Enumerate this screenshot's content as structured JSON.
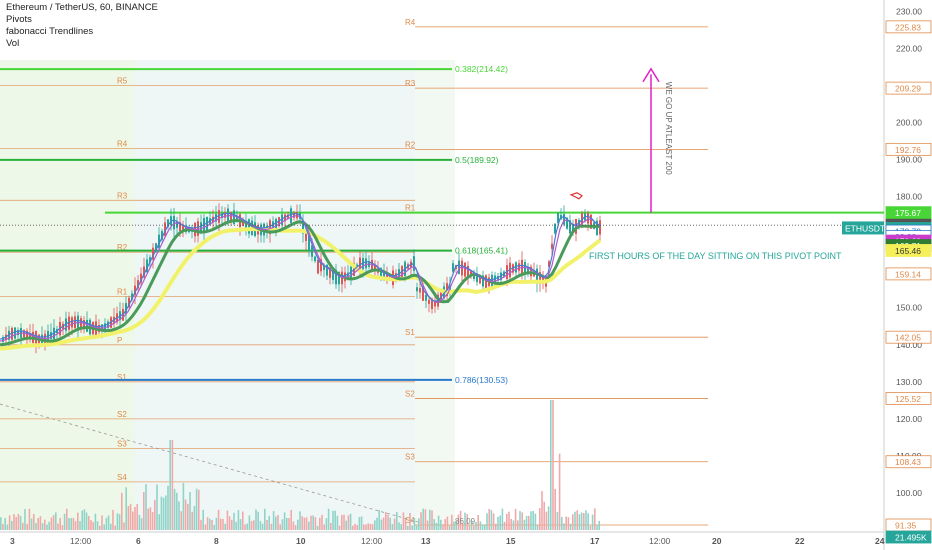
{
  "legend": {
    "symbol": "Ethereum / TetherUS, 60, BINANCE",
    "indicators": [
      "Pivots",
      "fabonacci Trendlines",
      "Vol"
    ]
  },
  "colors": {
    "green_line": "#48d636",
    "fib_blue": "#2a78c8",
    "fib_green": "#26b03a",
    "pivot_orange": "#e08a4a",
    "arrow": "#e020c8",
    "yellow_ma": "#f2f26a",
    "up_candle": "#26a69a",
    "down_candle": "#e05555"
  },
  "chart_data": {
    "type": "candlestick",
    "x_axis_ticks": [
      "3",
      "12:00",
      "6",
      "8",
      "10",
      "12:00",
      "13",
      "15",
      "17",
      "12:00",
      "20",
      "22",
      "24"
    ],
    "y_axis_ticks": [
      100,
      110,
      120,
      130,
      140,
      150,
      160,
      170,
      180,
      190,
      200,
      210,
      220,
      230
    ],
    "ylim": [
      90,
      232
    ],
    "fib_levels": [
      {
        "label": "0.382(214.42)",
        "value": 214.42,
        "color": "#48d636"
      },
      {
        "label": "0.5(189.92)",
        "value": 189.92,
        "color": "#26b03a"
      },
      {
        "label": "0.618(165.41)",
        "value": 165.41,
        "color": "#26b03a"
      },
      {
        "label": "0.786(130.53)",
        "value": 130.53,
        "color": "#2a78c8"
      }
    ],
    "price_tags": [
      {
        "value": "225.83",
        "price": 225.83,
        "bg": "#ffffff",
        "fg": "#e08a4a",
        "border": "#e08a4a"
      },
      {
        "value": "209.29",
        "price": 209.29,
        "bg": "#ffffff",
        "fg": "#e08a4a",
        "border": "#e08a4a"
      },
      {
        "value": "192.76",
        "price": 192.76,
        "bg": "#ffffff",
        "fg": "#e08a4a",
        "border": "#e08a4a"
      },
      {
        "value": "175.67",
        "price": 175.67,
        "bg": "#48d636",
        "fg": "#ffffff",
        "border": "#48d636"
      },
      {
        "value": "172.29",
        "price": 172.29,
        "bg": "#555555",
        "fg": "#ffffff",
        "border": "#555555"
      },
      {
        "value": "171.41",
        "price": 171.41,
        "bg": "#26a69a",
        "fg": "#ffffff",
        "border": "#26a69a"
      },
      {
        "value": "170.70",
        "price": 170.7,
        "bg": "#ffffff",
        "fg": "#2a78c8",
        "border": "#2a78c8"
      },
      {
        "value": "23:22",
        "price": 169.2,
        "bg": "#ffffff",
        "fg": "#2a78c8",
        "border": "#2a78c8"
      },
      {
        "value": "170.60",
        "price": 168.0,
        "bg": "#cc3ccc",
        "fg": "#ffffff",
        "border": "#cc3ccc"
      },
      {
        "value": "169.71",
        "price": 166.8,
        "bg": "#2e7d32",
        "fg": "#ffffff",
        "border": "#2e7d32"
      },
      {
        "value": "165.46",
        "price": 165.46,
        "bg": "#f5f05a",
        "fg": "#333333",
        "border": "#f5f05a"
      },
      {
        "value": "159.14",
        "price": 159.14,
        "bg": "#ffffff",
        "fg": "#e08a4a",
        "border": "#e08a4a"
      },
      {
        "value": "142.05",
        "price": 142.05,
        "bg": "#ffffff",
        "fg": "#e08a4a",
        "border": "#e08a4a"
      },
      {
        "value": "125.52",
        "price": 125.52,
        "bg": "#ffffff",
        "fg": "#e08a4a",
        "border": "#e08a4a"
      },
      {
        "value": "108.43",
        "price": 108.43,
        "bg": "#ffffff",
        "fg": "#e08a4a",
        "border": "#e08a4a"
      },
      {
        "value": "91.35",
        "price": 91.35,
        "bg": "#ffffff",
        "fg": "#e08a4a",
        "border": "#e08a4a"
      },
      {
        "value": "21.495K",
        "price": 88.1,
        "bg": "#26a69a",
        "fg": "#ffffff",
        "border": "#26a69a"
      }
    ],
    "symbol_badge": "ETHUSDT",
    "pivot_labels_left": [
      "R5",
      "R4",
      "R3",
      "R2",
      "R1",
      "P",
      "S1",
      "S2",
      "S3",
      "S4"
    ],
    "pivot_labels_right": [
      "R4",
      "R3",
      "R2",
      "R1",
      "S1",
      "S2",
      "S3",
      "S4"
    ],
    "annotations": {
      "arrow_text": "WE GO UP ATLEAST 200",
      "pivot_note": "FIRST HOURS OF THE DAY SITTING ON THIS PIVOT POINT",
      "volume_label": "86.09"
    }
  }
}
